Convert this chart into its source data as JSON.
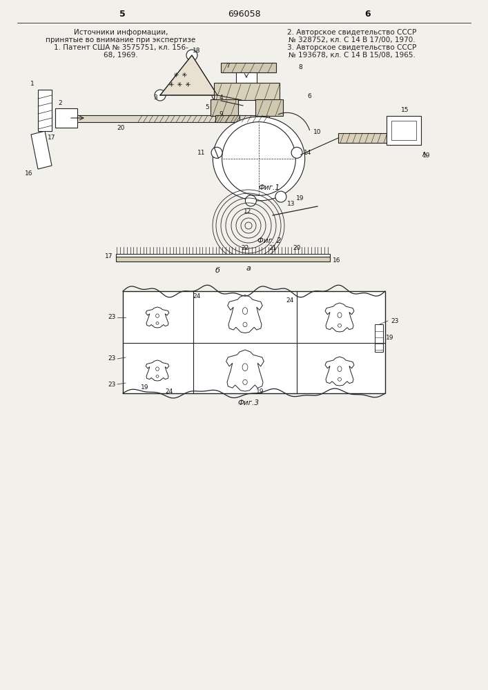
{
  "bg_color": "#f2f0eb",
  "header": {
    "page_left": "5",
    "page_center": "696058",
    "page_right": "6"
  },
  "left_text": [
    "Источники информации,",
    "принятые во внимание при экспертизе",
    "1. Патент США № 3575751, кл. 156-",
    "68, 1969."
  ],
  "right_text": [
    "2. Авторское свидетельство СССР",
    "№ 328752, кл. С 14 В 17/00, 1970.",
    "3. Авторское свидетельство СССР",
    "№ 193678, кл. С 14 В 15/08, 1965."
  ],
  "fig1_caption": "Фиг.1",
  "fig2_caption": "Фиг. 2",
  "fig3_caption": "Фиг.3",
  "label_a": "а",
  "label_b": "б"
}
